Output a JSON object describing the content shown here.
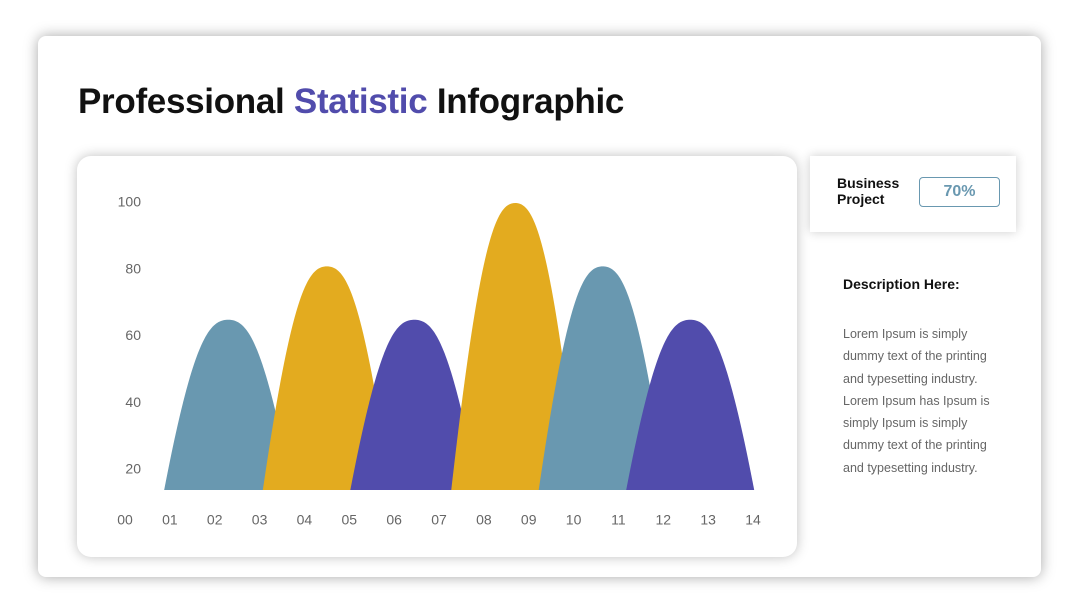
{
  "header": {
    "title_start": "Professional",
    "title_highlight": "Statistic",
    "title_end": "Infographic"
  },
  "card": {
    "label": "Business Project",
    "badge": "70%"
  },
  "description": {
    "heading": "Description Here:",
    "body": "Lorem Ipsum is simply dummy text of the printing and typesetting industry. Lorem Ipsum has Ipsum is simply Ipsum is simply dummy text of the printing and typesetting industry."
  },
  "chart_data": {
    "type": "peak",
    "x": [
      2.3,
      4.5,
      6.45,
      8.7,
      10.65,
      12.6
    ],
    "values": [
      65,
      81,
      65,
      100,
      81,
      65
    ],
    "colors": [
      "#6998b0",
      "#e3ab1f",
      "#514cac",
      "#e3ab1f",
      "#6998b0",
      "#514cac"
    ],
    "xlim": [
      0,
      14
    ],
    "xticks": [
      {
        "value": 0,
        "label": "00"
      },
      {
        "value": 1,
        "label": "01"
      },
      {
        "value": 2,
        "label": "02"
      },
      {
        "value": 3,
        "label": "03"
      },
      {
        "value": 4,
        "label": "04"
      },
      {
        "value": 5,
        "label": "05"
      },
      {
        "value": 6,
        "label": "06"
      },
      {
        "value": 7,
        "label": "07"
      },
      {
        "value": 8,
        "label": "08"
      },
      {
        "value": 9,
        "label": "09"
      },
      {
        "value": 10,
        "label": "10"
      },
      {
        "value": 11,
        "label": "11"
      },
      {
        "value": 12,
        "label": "12"
      },
      {
        "value": 13,
        "label": "13"
      },
      {
        "value": 14,
        "label": "14"
      }
    ],
    "ylim": [
      14,
      100
    ],
    "yticks": [
      20,
      40,
      60,
      80,
      100
    ]
  }
}
